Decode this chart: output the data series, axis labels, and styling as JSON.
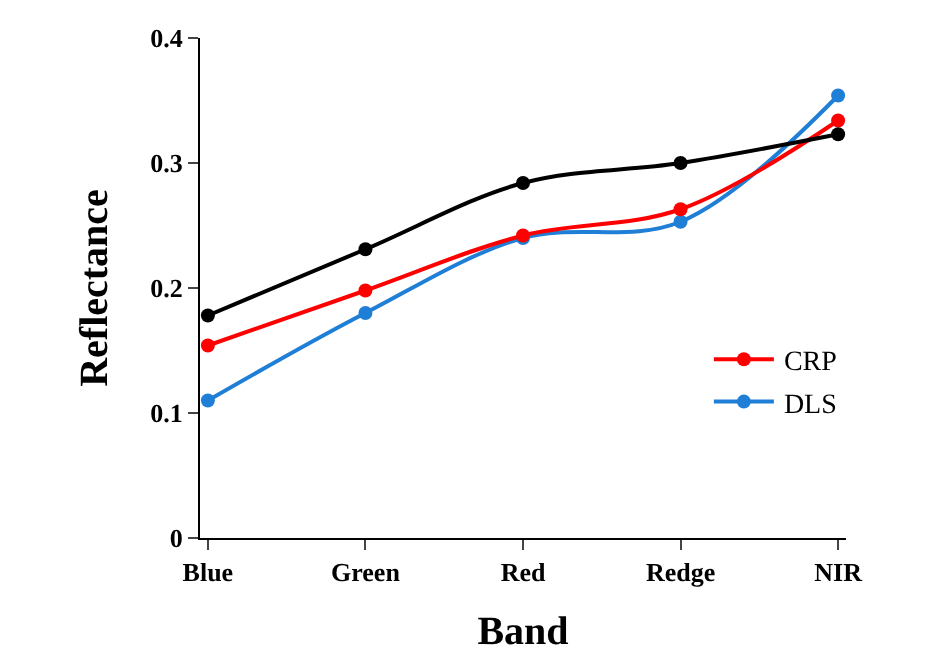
{
  "chart_data": {
    "type": "line",
    "xlabel": "Band",
    "ylabel": "Reflectance",
    "categories": [
      "Blue",
      "Green",
      "Red",
      "Redge",
      "NIR"
    ],
    "series": [
      {
        "color": "#000000",
        "values": [
          0.178,
          0.231,
          0.284,
          0.3,
          0.323
        ]
      },
      {
        "name": "CRP",
        "color": "#ff0000",
        "values": [
          0.154,
          0.198,
          0.242,
          0.263,
          0.334
        ]
      },
      {
        "name": "DLS",
        "color": "#1f7fd6",
        "values": [
          0.11,
          0.18,
          0.24,
          0.253,
          0.354
        ]
      }
    ],
    "ylim": [
      0,
      0.4
    ],
    "yticks": [
      0,
      0.1,
      0.2,
      0.3,
      0.4
    ],
    "legend": "right",
    "marker": "circle",
    "line_style": "solid"
  }
}
